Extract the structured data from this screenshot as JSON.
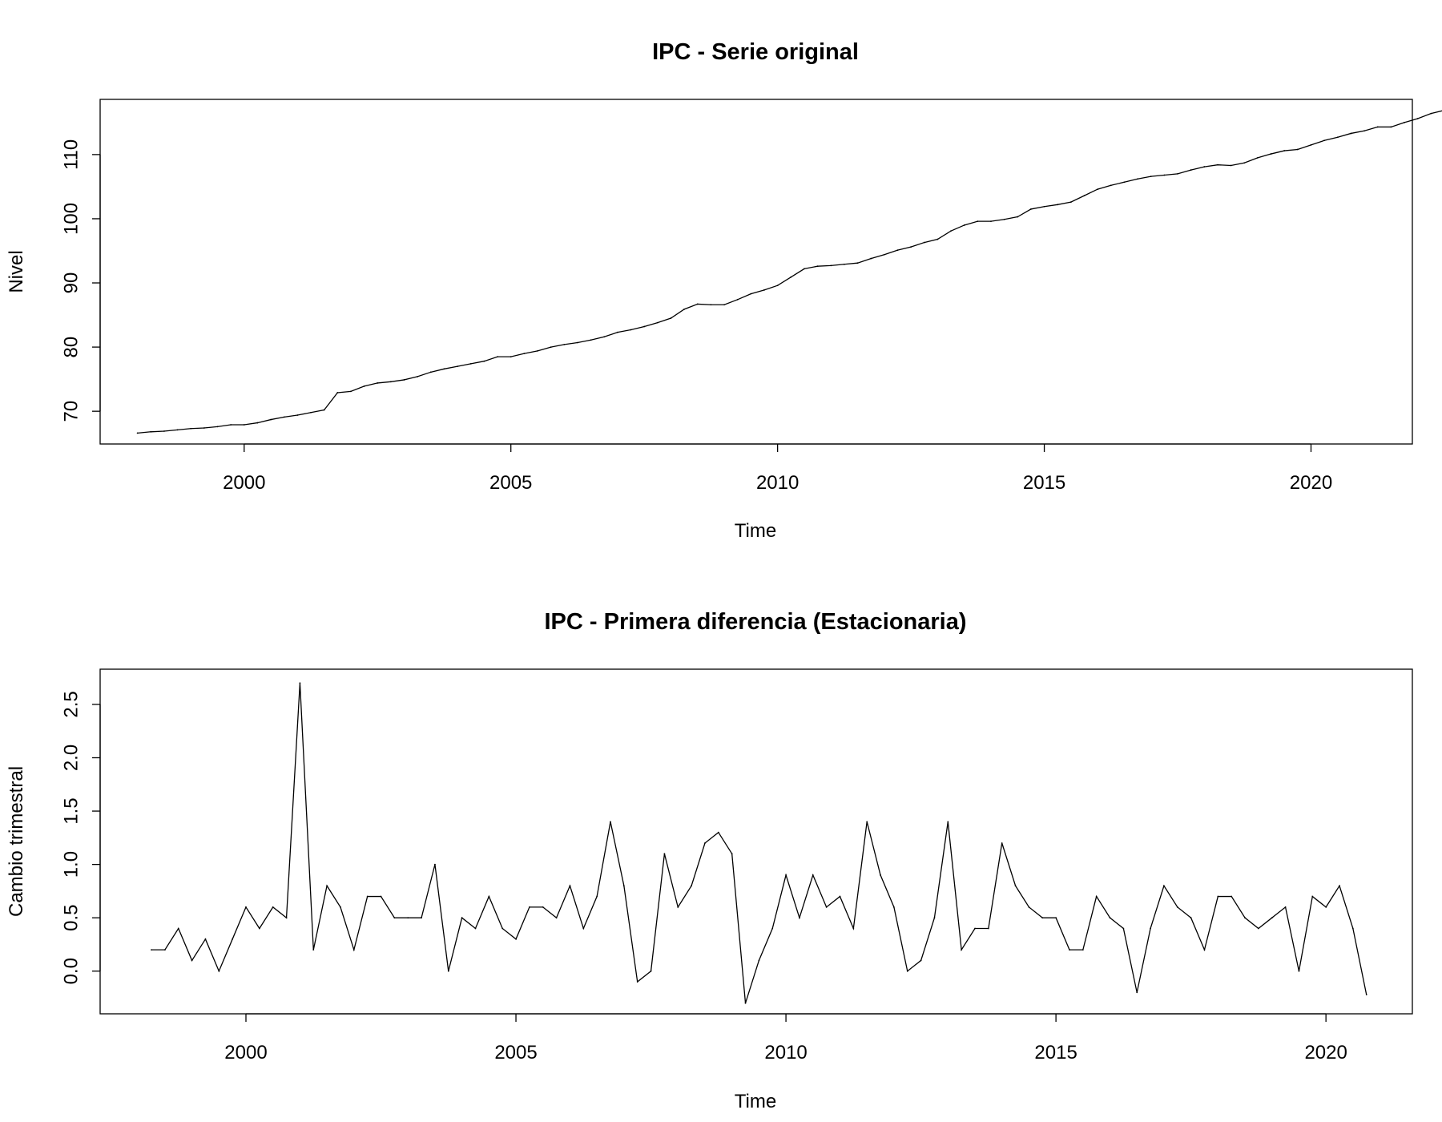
{
  "chart_data": [
    {
      "type": "line",
      "title": "IPC - Serie original",
      "xlabel": "Time",
      "ylabel": "Nivel",
      "xlim": [
        1997.3,
        2021.9
      ],
      "ylim": [
        64.9,
        118.6
      ],
      "xticks": [
        2000,
        2005,
        2010,
        2015,
        2020
      ],
      "yticks": [
        70,
        80,
        90,
        100,
        110
      ],
      "grid": false,
      "series": [
        {
          "color": "#000000",
          "x_start": 1998.0,
          "x_step": 0.25,
          "values": [
            66.6,
            66.8,
            66.9,
            67.1,
            67.3,
            67.4,
            67.6,
            67.9,
            67.9,
            68.2,
            68.7,
            69.1,
            69.4,
            69.8,
            70.2,
            72.9,
            73.1,
            73.9,
            74.4,
            74.6,
            74.9,
            75.4,
            76.1,
            76.6,
            77.0,
            77.4,
            77.8,
            78.5,
            78.5,
            79.0,
            79.4,
            80.0,
            80.4,
            80.7,
            81.1,
            81.6,
            82.3,
            82.7,
            83.2,
            83.8,
            84.5,
            85.9,
            86.7,
            86.6,
            86.6,
            87.4,
            88.3,
            88.9,
            89.6,
            90.9,
            92.2,
            92.6,
            92.7,
            92.9,
            93.1,
            93.8,
            94.4,
            95.1,
            95.6,
            96.3,
            96.8,
            98.1,
            99.0,
            99.6,
            99.6,
            99.9,
            100.3,
            101.5,
            101.9,
            102.2,
            102.6,
            103.6,
            104.6,
            105.2,
            105.7,
            106.2,
            106.6,
            106.8,
            107.0,
            107.6,
            108.1,
            108.4,
            108.3,
            108.7,
            109.5,
            110.1,
            110.6,
            110.8,
            111.5,
            112.2,
            112.7,
            113.3,
            113.7,
            114.3,
            114.3,
            115.0,
            115.6,
            116.4,
            116.9,
            116.6
          ]
        }
      ]
    },
    {
      "type": "line",
      "title": "IPC - Primera diferencia (Estacionaria)",
      "xlabel": "Time",
      "ylabel": "Cambio trimestral",
      "xlim": [
        1997.3,
        2021.6
      ],
      "ylim": [
        -0.4,
        2.83
      ],
      "xticks": [
        2000,
        2005,
        2010,
        2015,
        2020
      ],
      "yticks": [
        0.0,
        0.5,
        1.0,
        1.5,
        2.0,
        2.5
      ],
      "ytick_labels": [
        "0.0",
        "0.5",
        "1.0",
        "1.5",
        "2.0",
        "2.5"
      ],
      "grid": false,
      "series": [
        {
          "color": "#000000",
          "x_start": 1998.25,
          "x_step": 0.25,
          "values": [
            0.2,
            0.2,
            0.4,
            0.1,
            0.3,
            0.0,
            0.3,
            0.6,
            0.4,
            0.6,
            0.5,
            2.7,
            0.2,
            0.8,
            0.6,
            0.2,
            0.7,
            0.7,
            0.5,
            0.5,
            0.5,
            1.0,
            0.0,
            0.5,
            0.4,
            0.7,
            0.4,
            0.3,
            0.6,
            0.6,
            0.5,
            0.8,
            0.4,
            0.7,
            1.4,
            0.8,
            -0.1,
            0.0,
            1.1,
            0.6,
            0.8,
            1.2,
            1.3,
            1.1,
            -0.3,
            0.1,
            0.4,
            0.9,
            0.5,
            0.9,
            0.6,
            0.7,
            0.4,
            1.4,
            0.9,
            0.6,
            0.0,
            0.1,
            0.5,
            1.4,
            0.2,
            0.4,
            0.4,
            1.2,
            0.8,
            0.6,
            0.5,
            0.5,
            0.2,
            0.2,
            0.7,
            0.5,
            0.4,
            -0.2,
            0.4,
            0.8,
            0.6,
            0.5,
            0.2,
            0.7,
            0.7,
            0.5,
            0.4,
            0.5,
            0.6,
            0.0,
            0.7,
            0.6,
            0.8,
            0.4,
            -0.22
          ]
        }
      ]
    }
  ]
}
